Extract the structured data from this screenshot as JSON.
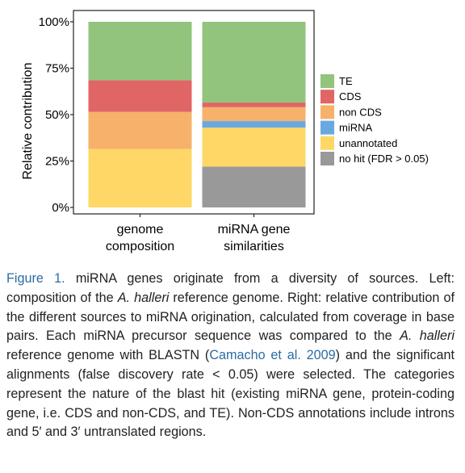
{
  "chart_data": {
    "type": "bar",
    "stacked": true,
    "categories": [
      [
        "genome",
        "composition"
      ],
      [
        "miRNA gene",
        "similarities"
      ]
    ],
    "ylabel": "Relative contribution",
    "ylim": [
      0,
      100
    ],
    "yticks": [
      0,
      25,
      50,
      75,
      100
    ],
    "ytick_labels": [
      "0%",
      "25%",
      "50%",
      "75%",
      "100%"
    ],
    "legend_position": "right",
    "series": [
      {
        "name": "no hit (FDR > 0.05)",
        "color": "#999999",
        "values": [
          0,
          22
        ]
      },
      {
        "name": "unannotated",
        "color": "#fed766",
        "values": [
          31.5,
          21
        ]
      },
      {
        "name": "miRNA",
        "color": "#6aa9e0",
        "values": [
          0,
          3.5
        ]
      },
      {
        "name": "non CDS",
        "color": "#f6b26b",
        "values": [
          20,
          7.5
        ]
      },
      {
        "name": "CDS",
        "color": "#e06666",
        "values": [
          17,
          2.5
        ]
      },
      {
        "name": "TE",
        "color": "#93c47d",
        "values": [
          31.5,
          43.5
        ]
      }
    ],
    "legend_order": [
      "TE",
      "CDS",
      "non CDS",
      "miRNA",
      "unannotated",
      "no hit (FDR > 0.05)"
    ]
  },
  "caption": {
    "figure_label": "Figure 1.",
    "t1": " miRNA genes originate from a diversity of sources. Left: composition of the ",
    "species1": "A. halleri",
    "t2": " reference genome. Right: relative contribution of the different sources to miRNA origination, calculated from coverage in base pairs. Each miRNA precursor sequence was compared to the ",
    "species2": "A. halleri",
    "t3": " reference genome with BLASTN (",
    "citation": "Camacho et al. 2009",
    "t4": ") and the significant alignments (false discovery rate < 0.05) were selected. The categories represent the nature of the blast hit (existing miRNA gene, protein-coding gene, i.e. CDS and non-CDS, and TE). Non-CDS annotations include introns and 5′ and 3′ untranslated regions."
  }
}
